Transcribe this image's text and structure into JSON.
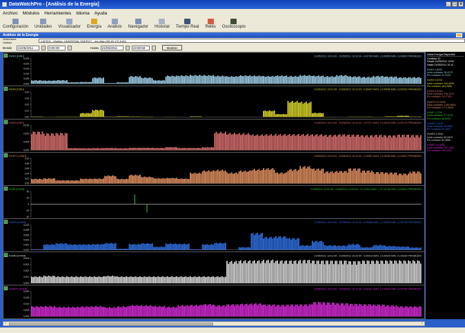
{
  "window": {
    "title": "DataWatchPro - [Análisis de la Energía]",
    "buttons": [
      "_",
      "□",
      "x"
    ]
  },
  "menu": [
    "Archivo",
    "Módulos",
    "Herramientes",
    "Idioma",
    "Ayuda"
  ],
  "toolbar": [
    {
      "label": "Configuración",
      "icon": "gear-icon",
      "color": "#7f93b3"
    },
    {
      "label": "Unidades",
      "icon": "devices-icon",
      "color": "#8a9ab8"
    },
    {
      "label": "Visualizador",
      "icon": "monitor-icon",
      "color": "#9aa7c2"
    },
    {
      "label": "Energía",
      "icon": "energy-icon",
      "color": "#e0a822"
    },
    {
      "label": "Análisis",
      "icon": "analysis-icon",
      "color": "#8f9fc0"
    },
    {
      "label": "Navegador",
      "icon": "navigator-icon",
      "color": "#7e8fb0"
    },
    {
      "label": "Historial",
      "icon": "history-icon",
      "color": "#a9b3c8"
    },
    {
      "label": "Tiempo Real",
      "icon": "realtime-icon",
      "color": "#3f5576"
    },
    {
      "label": "Relés",
      "icon": "relay-icon",
      "color": "#d55b3f"
    },
    {
      "label": "Osciloscopio",
      "icon": "oscilloscope-icon",
      "color": "#3e4d3a"
    }
  ],
  "panel": {
    "title": "Análisis de la Energía"
  },
  "unit": {
    "label": "Seleccione Unidad",
    "value": "LAFE01 - Modelo: UNIVERSAL ENERGY - Ind.(http://30.45.170.6:80)"
  },
  "filter": {
    "desde_label": "Desde",
    "desde_date": "21/05/2011",
    "desde_time": "0:00:00",
    "hasta_label": "Hasta",
    "hasta_date": "21/05/2011",
    "hasta_time": "23:59:59",
    "button": "Mostrar"
  },
  "colors": {
    "chart_bg": "#000000",
    "window_blue": "#2a60c8"
  },
  "charts": [
    {
      "name": "KWH1 [KWH]",
      "color": "#9ecfe8",
      "stats": "21/05/2011 13:01:09 - 21/05/2011 10:10:04 - 0,02762 MAX.  |  0,00059 MIN.  |  0,00602 PROMEDIO",
      "ticks": [
        "0,025",
        "0,020",
        "0,015",
        "0,010",
        "0,005",
        "0,000"
      ]
    },
    {
      "name": "KWH2 [KWH]",
      "color": "#d9d62a",
      "stats": "21/05/2011 13:01:09 - 21/05/2011 10:10:04 - 0,06497 MAX.  |  0,00000 MIN.  |  0,00191 PROMEDIO",
      "ticks": [
        "0,04",
        "0,03",
        "0,02",
        "0,01",
        "0,00"
      ]
    },
    {
      "name": "KWH3 [KWH]",
      "color": "#d86f6f",
      "stats": "21/05/2011 13:01:09 - 21/05/2011 10:10:04 - 0,07377 MAX.  |  0,00163 MIN.  |  0,00713 PROMEDIO",
      "ticks": [
        "0,015",
        "0,010",
        "0,005",
        "0,000"
      ]
    },
    {
      "name": "KWHT3 [ KWH]",
      "color": "#e09060",
      "stats": "21/05/2011 13:01:09 - 21/05/2011 10:10:04 - 0,09057 MAX.  |  0,00259 MIN.  |  0,01507 PROMEDIO",
      "ticks": [
        "0,10",
        "0,08",
        "0,06",
        "0,04",
        "0,02",
        "0,00"
      ]
    },
    {
      "name": "KVAR [KVAR]",
      "color": "#2ad02a",
      "stats": "21/05/2011 13:01:09 - 21/05/2011 10:10:04 - 31,37515 MAX.  |  -27,19738 MIN.  |  0,00322 PROMEDIO",
      "ticks": [
        "40",
        "20",
        "0",
        "-20",
        "-40"
      ]
    },
    {
      "name": "KVAR2 [KVAR]",
      "color": "#2f6fe0",
      "stats": "21/05/2011 13:01:09 - 21/05/2011 10:10:04 - 0,00985 MAX.  |  0,00000 MIN.  |  0,00278 PROMEDIO",
      "ticks": [
        "0,010",
        "0,008",
        "0,006",
        "0,004",
        "0,002",
        "0,000"
      ]
    },
    {
      "name": "KVAR3 [KVAR]",
      "color": "#d8d8d8",
      "stats": "21/05/2011 13:01:09 - 21/05/2011 10:10:04 - 0,00913 MAX.  |  0,00025 MIN.  |  0,00330 PROMEDIO",
      "ticks": [
        "0,004",
        "0,003",
        "0,002",
        "0,001",
        "0,000"
      ]
    },
    {
      "name": "KVART3 [KVAR]",
      "color": "#d62ad6",
      "stats": "21/05/2011 13:01:09 - 21/05/2011 10:10:04 - 0,02301 MAX.  |  0,00000 MIN.  |  0,00705 PROMEDIO",
      "ticks": [
        "0,020",
        "0,015",
        "0,010",
        "0,005",
        "0,000"
      ]
    }
  ],
  "side_panel": {
    "title": "Datos Energía Disponible",
    "blocks": [
      {
        "name": "Cantidad",
        "color": "#ffffff",
        "lines": [
          "Cantidad  32",
          "Desde  21/05/2011 13:00",
          "Hasta  21/05/2011 10:10"
        ]
      },
      {
        "name": "KWH1",
        "color": "#9ecfe8",
        "lines": [
          "KWH1  2,8931",
          "Inicio contador  28,4172",
          "Fin contador  31,3103"
        ]
      },
      {
        "name": "KWH2",
        "color": "#d9d62a",
        "lines": [
          "KWH2  0,6702",
          "Inicio contador  163,5948",
          "Fin contador  164,2650"
        ]
      },
      {
        "name": "KWH3",
        "color": "#d86f6f",
        "lines": [
          "KWH3  3,4244",
          "Inicio contador  116,3279",
          "Fin contador  119,7523"
        ]
      },
      {
        "name": "KWHT3",
        "color": "#e09060",
        "lines": [
          "KWHT3  12,0009",
          "Inicio contador  1760,9609",
          "Fin contador  1772,9618"
        ]
      },
      {
        "name": "KVAR",
        "color": "#2ad02a",
        "lines": [
          "KVAR  1,1724",
          "Inicio contador  37,4270",
          "Fin contador  38,5994"
        ]
      },
      {
        "name": "KVAR2",
        "color": "#2f6fe0",
        "lines": [
          "KVAR2  1,3492",
          "Inicio contador  30,8360",
          "Fin contador  32,1852"
        ]
      },
      {
        "name": "KVAR3",
        "color": "#d8d8d8",
        "lines": [
          "KVAR3  2,3010",
          "Inicio contador  50,0870",
          "Fin contador  52,3880"
        ]
      },
      {
        "name": "KVART3",
        "color": "#d62ad6",
        "lines": [
          "KVART3  5,0050",
          "Inicio contador  187,3360",
          "Fin contador  192,3410"
        ]
      }
    ]
  },
  "chart_data": [
    {
      "type": "bar",
      "name": "KWH1 [KWH]",
      "ylim": [
        0,
        0.025
      ],
      "values": [
        0.0035,
        0.0032,
        0.0036,
        0.0015,
        0.0018,
        0.0063,
        0.0007,
        0.0014,
        0.0077,
        0.0063,
        0.0035,
        0.0081,
        0.0084,
        0.0088,
        0.0087,
        0.0081,
        0.0076,
        0.0084,
        0.0082,
        0.0078,
        0.0083,
        0.0078,
        0.0087,
        0.0082,
        0.0076,
        0.0087,
        0.0075,
        0.0069,
        0.0079,
        0.0073,
        0.0065,
        0.0066
      ]
    },
    {
      "type": "bar",
      "name": "KWH2 [KWH]",
      "ylim": [
        0,
        0.04
      ],
      "values": [
        0.0007,
        0.0002,
        0.0005,
        0.0005,
        0.0064,
        0.0118,
        0.0006,
        0.001,
        0.0007,
        0.0005,
        0.0,
        0.0003,
        0.0,
        0.0009,
        0.0,
        0.0,
        0.0,
        0.0,
        0.0,
        0.0103,
        0.0047,
        0.0258,
        0.0244,
        0.0067,
        0.0003,
        0.0,
        0.0005,
        0.0005,
        0.0002,
        0.0009,
        0.0019,
        0.0006
      ]
    },
    {
      "type": "bar",
      "name": "KWH3 [KWH]",
      "ylim": [
        0,
        0.015
      ],
      "values": [
        0.0114,
        0.0103,
        0.0105,
        0.0013,
        0.0012,
        0.0013,
        0.0014,
        0.0012,
        0.0015,
        0.0015,
        0.0014,
        0.0019,
        0.0014,
        0.0014,
        0.0018,
        0.0111,
        0.0105,
        0.0103,
        0.0096,
        0.0097,
        0.0098,
        0.0098,
        0.0098,
        0.0097,
        0.0094,
        0.0097,
        0.0095,
        0.0092,
        0.0094,
        0.0091,
        0.0095,
        0.0093
      ]
    },
    {
      "type": "bar",
      "name": "KWHT3 [ KWH]",
      "ylim": [
        0,
        0.1
      ],
      "values": [
        0.0187,
        0.0208,
        0.0129,
        0.0127,
        0.0194,
        0.02,
        0.0324,
        0.0186,
        0.0351,
        0.0275,
        0.0212,
        0.0226,
        0.0199,
        0.0433,
        0.0526,
        0.0554,
        0.044,
        0.052,
        0.0579,
        0.0616,
        0.0443,
        0.058,
        0.0698,
        0.0605,
        0.0489,
        0.0508,
        0.0612,
        0.0526,
        0.0466,
        0.0444,
        0.0403,
        0.0488
      ]
    },
    {
      "type": "line",
      "name": "KVAR [KVAR]",
      "ylim": [
        -40,
        40
      ],
      "values": [
        0,
        0,
        0,
        0,
        0,
        0,
        0,
        0,
        31.4,
        -27.2,
        0,
        0,
        0,
        0,
        0,
        0,
        0,
        0,
        0,
        0,
        0,
        0,
        0,
        0,
        0,
        0,
        0,
        0,
        0,
        0,
        0,
        0
      ]
    },
    {
      "type": "bar",
      "name": "KVAR2 [KVAR]",
      "ylim": [
        0,
        0.01
      ],
      "values": [
        0.0003,
        0.0023,
        0.0027,
        0.0023,
        0.0023,
        0.0024,
        0.0028,
        0.0005,
        0.0024,
        0.0027,
        0.0013,
        0.0026,
        0.0025,
        0.0003,
        0.0023,
        0.0029,
        0.0,
        0.0011,
        0.0069,
        0.0053,
        0.0056,
        0.0048,
        0.0019,
        0.0037,
        0.0019,
        0.0018,
        0.0024,
        0.0011,
        0.002,
        0.0016,
        0.0014,
        0.001
      ]
    },
    {
      "type": "bar",
      "name": "KVAR3 [KVAR]",
      "ylim": [
        0,
        0.004
      ],
      "values": [
        0.0011,
        0.0012,
        0.0011,
        0.0011,
        0.0011,
        0.0011,
        0.0012,
        0.0011,
        0.0011,
        0.0011,
        0.0011,
        0.0011,
        0.0011,
        0.0011,
        0.0011,
        0.0011,
        0.0036,
        0.0037,
        0.0037,
        0.0038,
        0.0037,
        0.0037,
        0.0038,
        0.0037,
        0.0037,
        0.0037,
        0.0036,
        0.0037,
        0.0037,
        0.0037,
        0.0037,
        0.0037
      ]
    },
    {
      "type": "bar",
      "name": "KVART3 [KVAR]",
      "ylim": [
        0,
        0.02
      ],
      "values": [
        0.0083,
        0.0084,
        0.0078,
        0.0078,
        0.0082,
        0.0084,
        0.0075,
        0.0082,
        0.0092,
        0.0091,
        0.0085,
        0.0079,
        0.0092,
        0.0094,
        0.0101,
        0.0091,
        0.0099,
        0.0103,
        0.0106,
        0.0098,
        0.0095,
        0.0098,
        0.0099,
        0.0118,
        0.0114,
        0.0108,
        0.0103,
        0.01,
        0.0097,
        0.0091,
        0.0083,
        0.0082
      ]
    }
  ]
}
